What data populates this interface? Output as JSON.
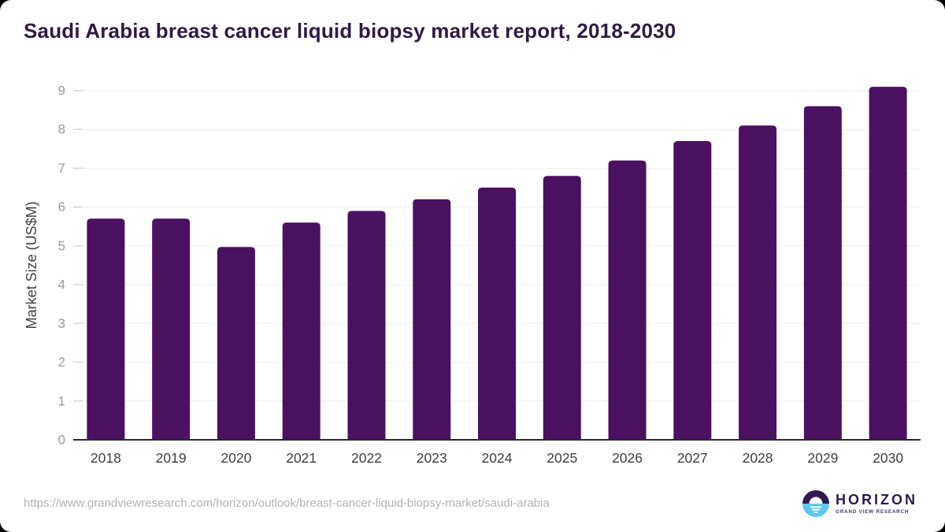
{
  "header": {
    "title": "Saudi Arabia breast cancer liquid biopsy market report, 2018-2030"
  },
  "chart_data": {
    "type": "bar",
    "title": "Saudi Arabia breast cancer liquid biopsy market report, 2018-2030",
    "categories": [
      "2018",
      "2019",
      "2020",
      "2021",
      "2022",
      "2023",
      "2024",
      "2025",
      "2026",
      "2027",
      "2028",
      "2029",
      "2030"
    ],
    "values": [
      5.7,
      5.7,
      4.97,
      5.6,
      5.9,
      6.2,
      6.5,
      6.8,
      7.2,
      7.7,
      8.1,
      8.6,
      9.1
    ],
    "xlabel": "",
    "ylabel": "Market Size (US$M)",
    "ylim": [
      0,
      9
    ],
    "yticks": [
      0,
      1,
      2,
      3,
      4,
      5,
      6,
      7,
      8,
      9
    ],
    "grid": true,
    "legend": "none",
    "bar_color": "#4a1161"
  },
  "colors": {
    "bar": "#4a1161",
    "title": "#2f1a45",
    "axis_line": "#2a2a2a",
    "gridline": "#ececec",
    "y_tick_label": "#999999",
    "x_tick_label": "#3f3f3f",
    "url_text": "#b3b3b3",
    "logo_dark_purple": "#2d1b4e",
    "logo_light_blue": "#5ec8f2"
  },
  "footer": {
    "url": "https://www.grandviewresearch.com/horizon/outlook/breast-cancer-liquid-biopsy-market/saudi-arabia",
    "logo": {
      "name": "HORIZON",
      "subtitle": "GRAND VIEW RESEARCH"
    }
  }
}
